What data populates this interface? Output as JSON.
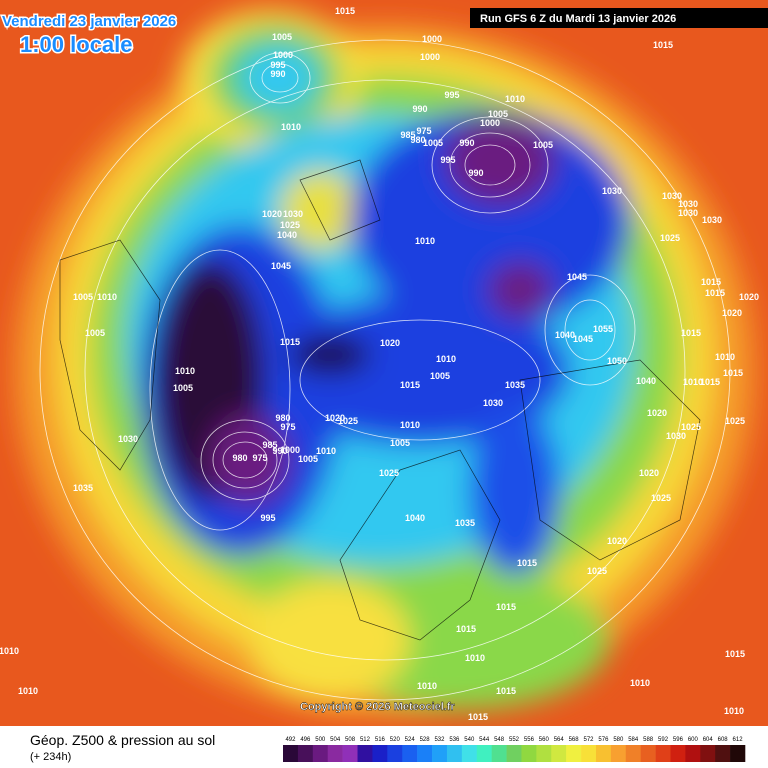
{
  "header": {
    "date": "Vendredi 23 janvier 2026",
    "time": "1:00 locale",
    "run": "Run GFS 6 Z du Mardi 13 janvier 2026"
  },
  "copyright": "Copyright © 2026 Meteociel.fr",
  "legend": {
    "title": "Géop. Z500 & pression au sol",
    "subtitle": "(+ 234h)",
    "scale": [
      492,
      496,
      500,
      504,
      508,
      512,
      516,
      520,
      524,
      528,
      532,
      536,
      540,
      544,
      548,
      552,
      556,
      560,
      564,
      568,
      572,
      576,
      580,
      584,
      588,
      592,
      596,
      600,
      604,
      608,
      612
    ],
    "colors": [
      "#2a0838",
      "#48105a",
      "#6a1a80",
      "#8a2aa0",
      "#9030b8",
      "#3010a0",
      "#1a20c8",
      "#1a40e0",
      "#1a60f0",
      "#1a80f8",
      "#20a0f8",
      "#30c0f0",
      "#40e0e8",
      "#40f0c0",
      "#50e090",
      "#70d060",
      "#90d840",
      "#b0e040",
      "#d0e840",
      "#f0f040",
      "#f8e038",
      "#f8c030",
      "#f8a030",
      "#f08028",
      "#e86020",
      "#e04018",
      "#d02010",
      "#b01010",
      "#801010",
      "#501010",
      "#200808"
    ]
  },
  "isobar_labels": [
    "1015",
    "1005",
    "1000",
    "995",
    "990",
    "1000",
    "1015",
    "1000",
    "1010",
    "995",
    "1010",
    "990",
    "1005",
    "1000",
    "985",
    "975",
    "980",
    "1005",
    "990",
    "1005",
    "995",
    "990",
    "1030",
    "1030",
    "1030",
    "1030",
    "1030",
    "1025",
    "1020",
    "1030",
    "1025",
    "1040",
    "1010",
    "1045",
    "1045",
    "1015",
    "1015",
    "1020",
    "1005",
    "1010",
    "1020",
    "1005",
    "1055",
    "1040",
    "1045",
    "1015",
    "1015",
    "1020",
    "1050",
    "1010",
    "1010",
    "1005",
    "1040",
    "1015",
    "1035",
    "1010",
    "1010",
    "1015",
    "1015",
    "1005",
    "1030",
    "1020",
    "1025",
    "980",
    "975",
    "1020",
    "1025",
    "1010",
    "1030",
    "1005",
    "1030",
    "1025",
    "985",
    "990",
    "1000",
    "1010",
    "1005",
    "980",
    "975",
    "1025",
    "1020",
    "1035",
    "1025",
    "995",
    "1040",
    "1035",
    "1020",
    "1015",
    "1025",
    "1015",
    "1015",
    "1010",
    "1010",
    "1015",
    "1010",
    "1015",
    "1010",
    "1010",
    "1015",
    "1010"
  ]
}
